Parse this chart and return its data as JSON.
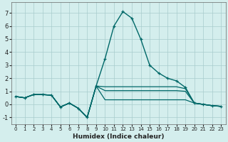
{
  "xlabel": "Humidex (Indice chaleur)",
  "bg_color": "#d4eeed",
  "grid_color": "#a8cccc",
  "line_color": "#006868",
  "xlim": [
    -0.5,
    23.5
  ],
  "ylim": [
    -1.5,
    7.8
  ],
  "yticks": [
    -1,
    0,
    1,
    2,
    3,
    4,
    5,
    6,
    7
  ],
  "xticks": [
    0,
    1,
    2,
    3,
    4,
    5,
    6,
    7,
    8,
    9,
    10,
    11,
    12,
    13,
    14,
    15,
    16,
    17,
    18,
    19,
    20,
    21,
    22,
    23
  ],
  "lines": [
    {
      "x": [
        0,
        1,
        2,
        3,
        4,
        5,
        6,
        7,
        8,
        9,
        10,
        11,
        12,
        13,
        14,
        15,
        16,
        17,
        18,
        19,
        20,
        21,
        22,
        23
      ],
      "y": [
        0.6,
        0.5,
        0.75,
        0.75,
        0.7,
        -0.2,
        0.1,
        -0.3,
        -1.0,
        1.4,
        3.5,
        6.0,
        7.1,
        6.6,
        5.0,
        3.0,
        2.4,
        2.0,
        1.8,
        1.3,
        0.1,
        0.0,
        -0.1,
        -0.15
      ],
      "marker": "+",
      "lw": 1.0
    },
    {
      "x": [
        0,
        1,
        2,
        3,
        4,
        5,
        6,
        7,
        8,
        9,
        10,
        11,
        12,
        13,
        14,
        15,
        16,
        17,
        18,
        19,
        20,
        21,
        22,
        23
      ],
      "y": [
        0.6,
        0.5,
        0.75,
        0.75,
        0.7,
        -0.2,
        0.1,
        -0.3,
        -1.0,
        1.4,
        1.35,
        1.35,
        1.35,
        1.35,
        1.35,
        1.35,
        1.35,
        1.35,
        1.35,
        1.2,
        0.1,
        0.0,
        -0.1,
        -0.15
      ],
      "marker": null,
      "lw": 0.9
    },
    {
      "x": [
        0,
        1,
        2,
        3,
        4,
        5,
        6,
        7,
        8,
        9,
        10,
        11,
        12,
        13,
        14,
        15,
        16,
        17,
        18,
        19,
        20,
        21,
        22,
        23
      ],
      "y": [
        0.6,
        0.5,
        0.75,
        0.75,
        0.7,
        -0.2,
        0.1,
        -0.3,
        -1.0,
        1.4,
        1.05,
        1.05,
        1.05,
        1.05,
        1.05,
        1.05,
        1.05,
        1.05,
        1.05,
        1.0,
        0.1,
        0.0,
        -0.1,
        -0.15
      ],
      "marker": null,
      "lw": 0.9
    },
    {
      "x": [
        0,
        1,
        2,
        3,
        4,
        5,
        6,
        7,
        8,
        9,
        10,
        11,
        12,
        13,
        14,
        15,
        16,
        17,
        18,
        19,
        20,
        21,
        22,
        23
      ],
      "y": [
        0.6,
        0.5,
        0.75,
        0.75,
        0.7,
        -0.2,
        0.1,
        -0.3,
        -1.0,
        1.4,
        0.35,
        0.35,
        0.35,
        0.35,
        0.35,
        0.35,
        0.35,
        0.35,
        0.35,
        0.35,
        0.1,
        0.0,
        -0.1,
        -0.15
      ],
      "marker": null,
      "lw": 0.9
    }
  ]
}
